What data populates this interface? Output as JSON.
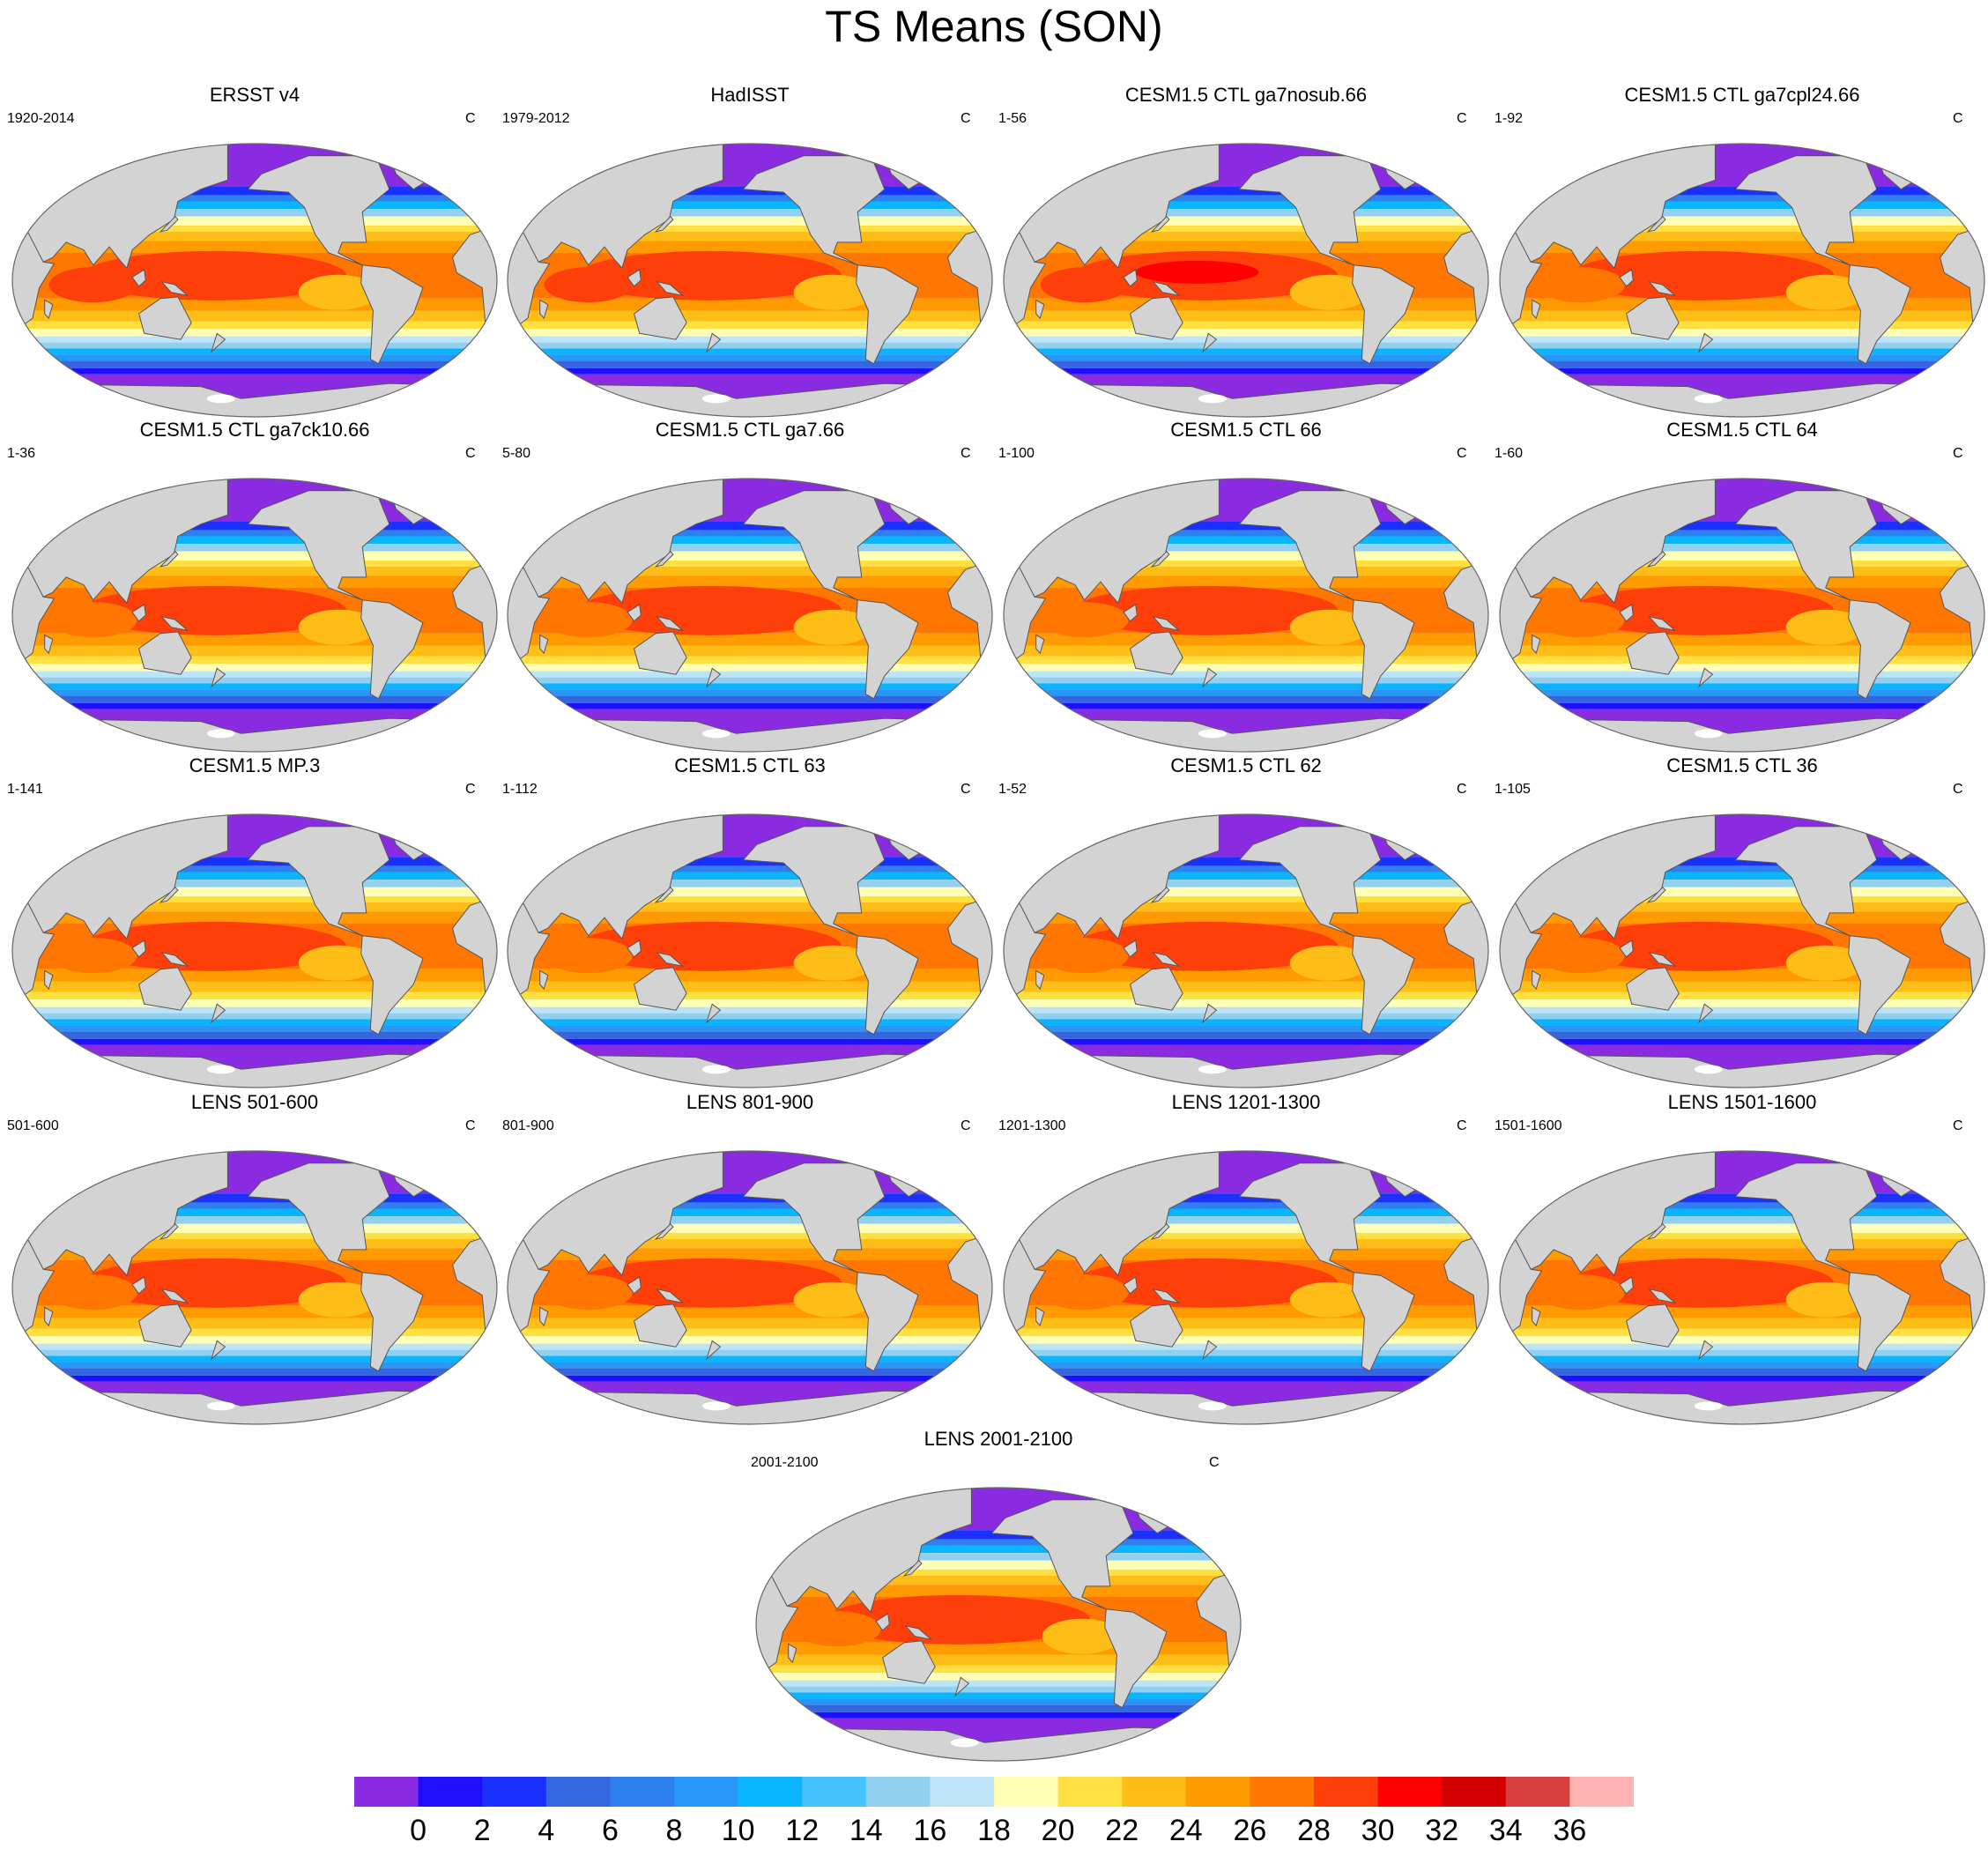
{
  "title": "TS Means (SON)",
  "colors": {
    "land": "#d3d3d3",
    "coast": "#555555",
    "levels": [
      "#8a2be2",
      "#1e0fff",
      "#1a30ff",
      "#3466e0",
      "#2e80f0",
      "#2898f8",
      "#0ab4ff",
      "#43c2fb",
      "#92d0ef",
      "#bde3f7",
      "#ffffb5",
      "#ffe040",
      "#ffbd18",
      "#ff9a00",
      "#ff7700",
      "#ff3f0a",
      "#ff0000",
      "#d20000",
      "#d84040",
      "#ffb3b3"
    ]
  },
  "panels": [
    {
      "title": "ERSST v4",
      "left": "1920-2014",
      "right": "C",
      "variant": "obs"
    },
    {
      "title": "HadISST",
      "left": "1979-2012",
      "right": "C",
      "variant": "obs"
    },
    {
      "title": "CESM1.5 CTL ga7nosub.66",
      "left": "1-56",
      "right": "C",
      "variant": "hot"
    },
    {
      "title": "CESM1.5 CTL ga7cpl24.66",
      "left": "1-92",
      "right": "C",
      "variant": "model"
    },
    {
      "title": "CESM1.5 CTL ga7ck10.66",
      "left": "1-36",
      "right": "C",
      "variant": "model"
    },
    {
      "title": "CESM1.5 CTL ga7.66",
      "left": "5-80",
      "right": "C",
      "variant": "model"
    },
    {
      "title": "CESM1.5 CTL 66",
      "left": "1-100",
      "right": "C",
      "variant": "model"
    },
    {
      "title": "CESM1.5 CTL 64",
      "left": "1-60",
      "right": "C",
      "variant": "model"
    },
    {
      "title": "CESM1.5 MP.3",
      "left": "1-141",
      "right": "C",
      "variant": "model"
    },
    {
      "title": "CESM1.5 CTL 63",
      "left": "1-112",
      "right": "C",
      "variant": "model"
    },
    {
      "title": "CESM1.5 CTL 62",
      "left": "1-52",
      "right": "C",
      "variant": "model"
    },
    {
      "title": "CESM1.5 CTL 36",
      "left": "1-105",
      "right": "C",
      "variant": "model"
    },
    {
      "title": "LENS 501-600",
      "left": "501-600",
      "right": "C",
      "variant": "model"
    },
    {
      "title": "LENS 801-900",
      "left": "801-900",
      "right": "C",
      "variant": "model"
    },
    {
      "title": "LENS 1201-1300",
      "left": "1201-1300",
      "right": "C",
      "variant": "model"
    },
    {
      "title": "LENS 1501-1600",
      "left": "1501-1600",
      "right": "C",
      "variant": "model"
    },
    {
      "title": "LENS 2001-2100",
      "left": "2001-2100",
      "right": "C",
      "variant": "model"
    }
  ],
  "colorbar": {
    "labels": [
      "0",
      "2",
      "4",
      "6",
      "8",
      "10",
      "12",
      "14",
      "16",
      "18",
      "20",
      "22",
      "24",
      "26",
      "28",
      "30",
      "32",
      "34",
      "36"
    ]
  }
}
